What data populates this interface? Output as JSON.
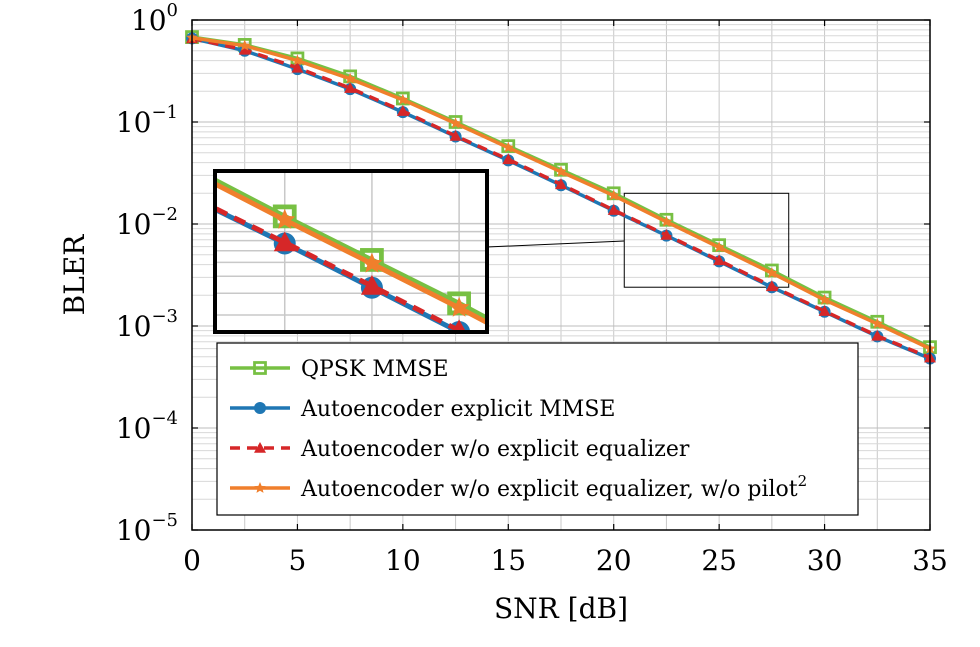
{
  "chart_data": {
    "type": "line",
    "xlabel": "SNR [dB]",
    "ylabel": "BLER",
    "xlim": [
      0,
      35
    ],
    "ylim": [
      1e-05,
      1
    ],
    "yscale": "log",
    "grid": true,
    "legend_position": "bottom-right",
    "x_ticks": [
      "0",
      "5",
      "10",
      "15",
      "20",
      "25",
      "30",
      "35"
    ],
    "y_ticks": [
      {
        "base": "10",
        "exp": "0",
        "value": 1
      },
      {
        "base": "10",
        "exp": "−1",
        "value": 0.1
      },
      {
        "base": "10",
        "exp": "−2",
        "value": 0.01
      },
      {
        "base": "10",
        "exp": "−3",
        "value": 0.001
      },
      {
        "base": "10",
        "exp": "−4",
        "value": 0.0001
      },
      {
        "base": "10",
        "exp": "−5",
        "value": 1e-05
      }
    ],
    "x": [
      0,
      2.5,
      5,
      7.5,
      10,
      12.5,
      15,
      17.5,
      20,
      22.5,
      25,
      27.5,
      30,
      32.5,
      35
    ],
    "series": [
      {
        "name": "QPSK MMSE",
        "color": "#77c043",
        "marker": "square",
        "dash": "solid",
        "values": [
          0.68,
          0.57,
          0.42,
          0.28,
          0.17,
          0.1,
          0.058,
          0.034,
          0.02,
          0.011,
          0.0062,
          0.0035,
          0.0019,
          0.0011,
          0.00062
        ]
      },
      {
        "name": "Autoencoder explicit MMSE",
        "color": "#1f77b4",
        "marker": "circle",
        "dash": "solid",
        "values": [
          0.66,
          0.5,
          0.33,
          0.21,
          0.125,
          0.072,
          0.042,
          0.024,
          0.0135,
          0.0077,
          0.0043,
          0.0024,
          0.00138,
          0.00079,
          0.00048
        ]
      },
      {
        "name": "Autoencoder w/o explicit equalizer",
        "color": "#d62728",
        "marker": "triangle",
        "dash": "dashed",
        "values": [
          0.66,
          0.51,
          0.34,
          0.215,
          0.128,
          0.073,
          0.043,
          0.0245,
          0.0137,
          0.0078,
          0.0044,
          0.00245,
          0.0014,
          0.0008,
          0.00049
        ]
      },
      {
        "name": "Autoencoder w/o explicit equalizer, w/o pilot",
        "name_superscript": "2",
        "color": "#f07f2c",
        "marker": "star",
        "dash": "solid",
        "values": [
          0.67,
          0.56,
          0.4,
          0.265,
          0.165,
          0.097,
          0.056,
          0.0325,
          0.019,
          0.0105,
          0.0059,
          0.0033,
          0.0018,
          0.00105,
          0.0006
        ]
      }
    ],
    "inset": {
      "zoom_x": [
        20.5,
        28.3
      ],
      "zoom_y": [
        0.0024,
        0.02
      ]
    }
  }
}
